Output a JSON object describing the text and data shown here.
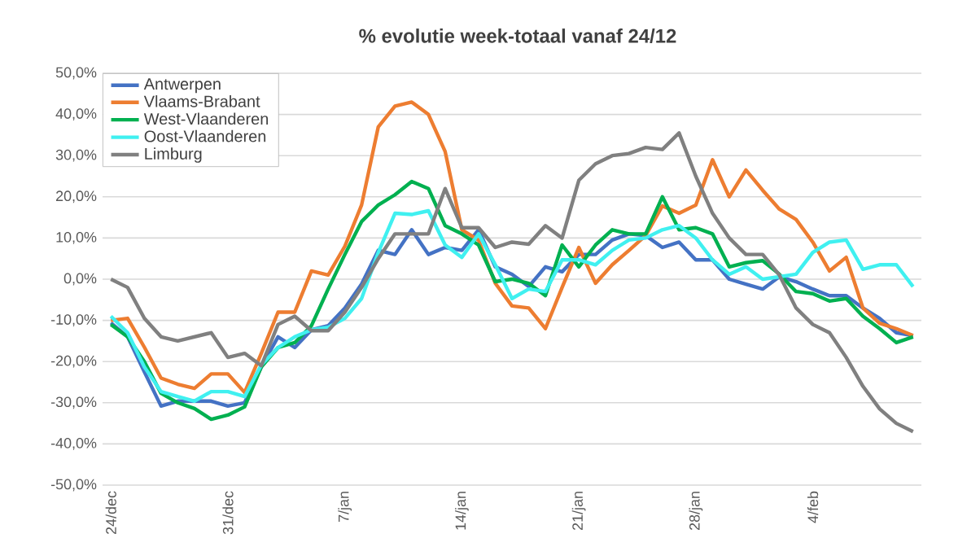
{
  "chart_data": {
    "type": "line",
    "title": "% evolutie week-totaal  vanaf 24/12",
    "categories": [
      "24/dec",
      null,
      null,
      null,
      null,
      null,
      null,
      "31/dec",
      null,
      null,
      null,
      null,
      null,
      null,
      "7/jan",
      null,
      null,
      null,
      null,
      null,
      null,
      "14/jan",
      null,
      null,
      null,
      null,
      null,
      null,
      "21/jan",
      null,
      null,
      null,
      null,
      null,
      null,
      "28/jan",
      null,
      null,
      null,
      null,
      null,
      null,
      "4/feb",
      null,
      null,
      null,
      null,
      null,
      null
    ],
    "ylim": [
      -50,
      50
    ],
    "yticks": [
      {
        "value": -50,
        "label": "-50,0%"
      },
      {
        "value": -40,
        "label": "-40,0%"
      },
      {
        "value": -30,
        "label": "-30,0%"
      },
      {
        "value": -20,
        "label": "-20,0%"
      },
      {
        "value": -10,
        "label": "-10,0%"
      },
      {
        "value": 0,
        "label": "0,0%"
      },
      {
        "value": 10,
        "label": "10,0%"
      },
      {
        "value": 20,
        "label": "20,0%"
      },
      {
        "value": 30,
        "label": "30,0%"
      },
      {
        "value": 40,
        "label": "40,0%"
      },
      {
        "value": 50,
        "label": "50,0%"
      }
    ],
    "grid": "y",
    "legend": "top left",
    "marker": "none",
    "line_style": "solid",
    "series": [
      {
        "name": "Antwerpen",
        "color": "#4472c4",
        "values": [
          -10.6,
          -14,
          -22.5,
          -30.8,
          -29.6,
          -29.6,
          -29.6,
          -30.8,
          -30,
          -21.3,
          -14,
          -16.6,
          -12.3,
          -11.3,
          -7,
          -1.2,
          7,
          6,
          12,
          6,
          7.7,
          7,
          12,
          3,
          1.2,
          -1.8,
          3,
          1.8,
          6,
          6,
          9.5,
          11,
          10.6,
          7.7,
          9,
          4.7,
          4.7,
          0,
          -1.2,
          -2.4,
          0.6,
          -0.6,
          -2.4,
          -4,
          -4,
          -7,
          -9.5,
          -13,
          -13.7
        ]
      },
      {
        "name": "Vlaams-Brabant",
        "color": "#ed7d31",
        "values": [
          -10,
          -9.5,
          -16.5,
          -24,
          -25.5,
          -26.5,
          -23,
          -23,
          -27.5,
          -18,
          -8,
          -8,
          2,
          1,
          8,
          18,
          37,
          42,
          43,
          40,
          31,
          12,
          9.5,
          -1,
          -6.5,
          -7,
          -12,
          -2,
          7.7,
          -1,
          3.5,
          7,
          10.6,
          17.8,
          16,
          18,
          29,
          20,
          26.5,
          21.6,
          17,
          14.5,
          9,
          2,
          5.3,
          -7,
          -10.7,
          -12,
          -13.7
        ]
      },
      {
        "name": "West-Vlaanderen",
        "color": "#00b050",
        "values": [
          -11,
          -14,
          -20,
          -27.7,
          -30,
          -31.4,
          -34,
          -33,
          -31,
          -21.3,
          -16.6,
          -15.4,
          -11.3,
          -2.4,
          6,
          14,
          18,
          20.5,
          23.7,
          22,
          13,
          11,
          8.3,
          -0.6,
          0,
          -1,
          -4,
          8.3,
          3,
          8.3,
          12,
          11,
          11,
          20,
          12,
          12.5,
          11,
          3,
          4,
          4.5,
          1.2,
          -3,
          -3.5,
          -5.3,
          -4.7,
          -9,
          -12,
          -15.4,
          -14
        ]
      },
      {
        "name": "Oost-Vlaanderen",
        "color": "#40f0f0",
        "values": [
          -9,
          -13,
          -21.3,
          -27.3,
          -28.5,
          -29.6,
          -27.3,
          -27.3,
          -28.5,
          -20.8,
          -16.6,
          -14,
          -12.3,
          -11.7,
          -9.5,
          -4.7,
          6.5,
          16,
          15.7,
          16.6,
          8.3,
          5.3,
          11,
          3.5,
          -4.7,
          -2.4,
          -3,
          4.7,
          4.7,
          3.5,
          7,
          9.5,
          10,
          12,
          13,
          10,
          4.7,
          1.2,
          3,
          0,
          0.6,
          1.2,
          6.5,
          9,
          9.5,
          2.4,
          3.5,
          3.5,
          -1.8
        ]
      },
      {
        "name": "Limburg",
        "color": "#808080",
        "values": [
          0,
          -2,
          -9.5,
          -14,
          -15,
          -14,
          -13,
          -19,
          -18,
          -21,
          -11,
          -9,
          -12.5,
          -12.5,
          -8,
          -2,
          5,
          11,
          11,
          11,
          22,
          12.5,
          12.5,
          7.7,
          9,
          8.5,
          13,
          10,
          24,
          28,
          30,
          30.5,
          32,
          31.5,
          35.5,
          25,
          16,
          10,
          6,
          6,
          1,
          -7,
          -11,
          -13,
          -19,
          -26,
          -31.5,
          -35,
          -37
        ]
      }
    ]
  }
}
